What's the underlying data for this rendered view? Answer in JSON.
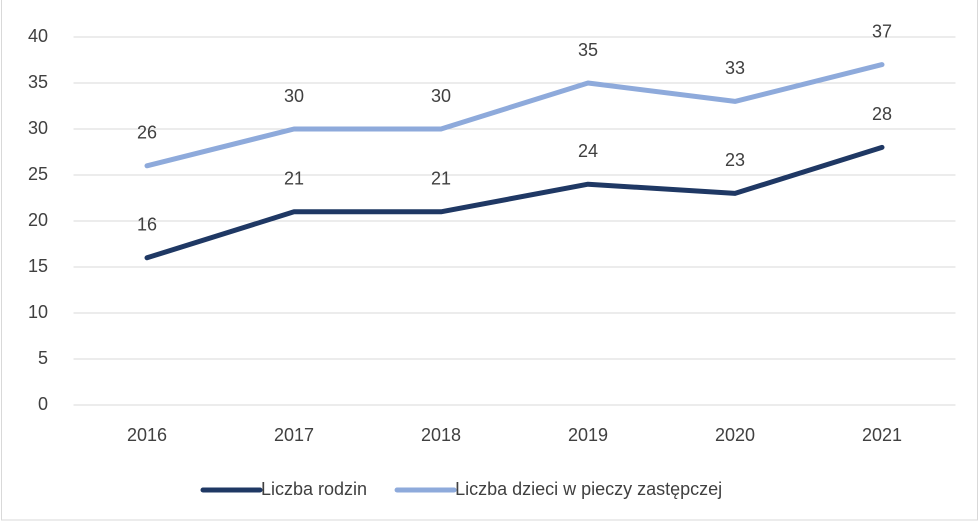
{
  "chart_data": {
    "type": "line",
    "categories": [
      "2016",
      "2017",
      "2018",
      "2019",
      "2020",
      "2021"
    ],
    "series": [
      {
        "name": "Liczba rodzin",
        "color": "#1f3864",
        "values": [
          16,
          21,
          21,
          24,
          23,
          28
        ]
      },
      {
        "name": "Liczba dzieci w pieczy zastępczej",
        "color": "#8eaadb",
        "values": [
          26,
          30,
          30,
          35,
          33,
          37
        ]
      }
    ],
    "ylim": [
      0,
      40
    ],
    "yticks": [
      0,
      5,
      10,
      15,
      20,
      25,
      30,
      35,
      40
    ],
    "grid": true,
    "legend": "bottom"
  }
}
